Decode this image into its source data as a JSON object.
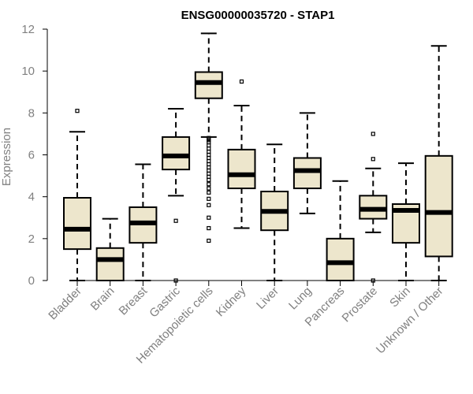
{
  "chart_data": {
    "type": "boxplot",
    "title": "ENSG00000035720 - STAP1",
    "xlabel": "",
    "ylabel": "Expression",
    "ylim": [
      0,
      12
    ],
    "yticks": [
      0,
      2,
      4,
      6,
      8,
      10,
      12
    ],
    "grid": false,
    "legend": "none",
    "colors": {
      "box_fill": "#ede6cc",
      "stroke": "#000000",
      "axis_text": "#808080"
    },
    "categories": [
      "Bladder",
      "Brain",
      "Breast",
      "Gastric",
      "Hematopoietic cells",
      "Kidney",
      "Liver",
      "Lung",
      "Pancreas",
      "Prostate",
      "Skin",
      "Unknown / Other"
    ],
    "boxes": [
      {
        "label": "Bladder",
        "min": 0,
        "q1": 1.5,
        "median": 2.45,
        "q3": 3.95,
        "max": 7.1,
        "outliers": [
          8.1
        ]
      },
      {
        "label": "Brain",
        "min": 0,
        "q1": 0,
        "median": 1.0,
        "q3": 1.55,
        "max": 2.95,
        "outliers": []
      },
      {
        "label": "Breast",
        "min": 0,
        "q1": 1.8,
        "median": 2.75,
        "q3": 3.5,
        "max": 5.55,
        "outliers": []
      },
      {
        "label": "Gastric",
        "min": 4.05,
        "q1": 5.3,
        "median": 5.95,
        "q3": 6.85,
        "max": 8.2,
        "outliers": [
          2.85,
          0
        ]
      },
      {
        "label": "Hematopoietic cells",
        "min": 6.85,
        "q1": 8.7,
        "median": 9.45,
        "q3": 9.95,
        "max": 11.8,
        "outliers": [
          6.8,
          6.7,
          6.6,
          6.45,
          6.3,
          6.15,
          6.0,
          5.85,
          5.7,
          5.55,
          5.4,
          5.25,
          5.1,
          4.95,
          4.8,
          4.6,
          4.4,
          4.2,
          3.9,
          3.6,
          3.0,
          2.5,
          1.9
        ]
      },
      {
        "label": "Kidney",
        "min": 2.5,
        "q1": 4.4,
        "median": 5.05,
        "q3": 6.25,
        "max": 8.35,
        "outliers": [
          9.5
        ]
      },
      {
        "label": "Liver",
        "min": 0,
        "q1": 2.4,
        "median": 3.3,
        "q3": 4.25,
        "max": 6.5,
        "outliers": []
      },
      {
        "label": "Lung",
        "min": 3.2,
        "q1": 4.4,
        "median": 5.25,
        "q3": 5.85,
        "max": 8.0,
        "outliers": []
      },
      {
        "label": "Pancreas",
        "min": 0,
        "q1": 0,
        "median": 0.85,
        "q3": 2.0,
        "max": 4.75,
        "outliers": []
      },
      {
        "label": "Prostate",
        "min": 2.3,
        "q1": 2.95,
        "median": 3.4,
        "q3": 4.05,
        "max": 5.35,
        "outliers": [
          7.0,
          5.8,
          0
        ]
      },
      {
        "label": "Skin",
        "min": 0,
        "q1": 1.8,
        "median": 3.35,
        "q3": 3.65,
        "max": 5.6,
        "outliers": []
      },
      {
        "label": "Unknown / Other",
        "min": 0,
        "q1": 1.15,
        "median": 3.25,
        "q3": 5.95,
        "max": 11.2,
        "outliers": []
      }
    ]
  }
}
